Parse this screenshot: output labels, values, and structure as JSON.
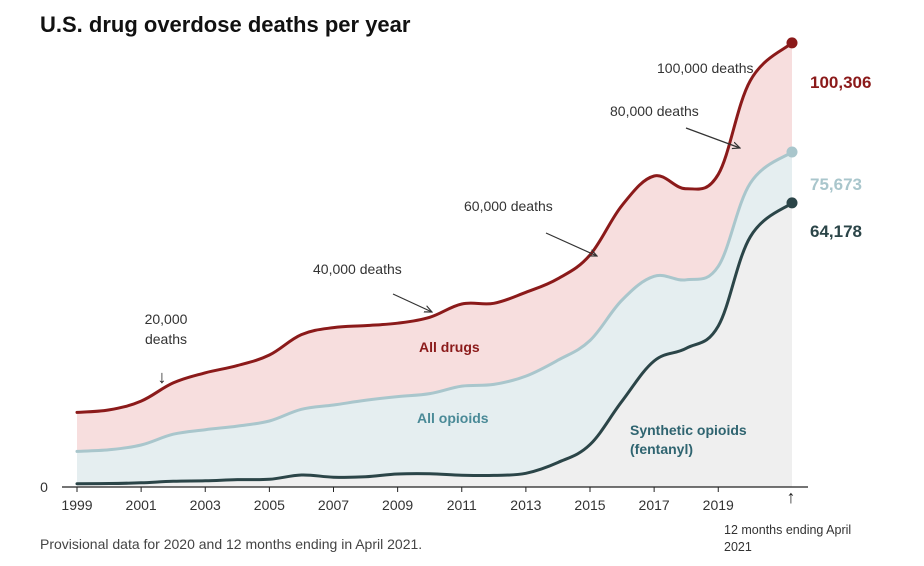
{
  "title": "U.S. drug overdose deaths per year",
  "footnote": "Provisional data for 2020 and 12 months ending in April 2021.",
  "colors": {
    "all_drugs": "#8b1a1a",
    "all_drugs_fill": "#f7dede",
    "all_opioids": "#a9c6cc",
    "all_opioids_fill": "#e5eef0",
    "synthetic": "#2b4548",
    "synthetic_fill": "#efefef",
    "synthetic_label": "#2f6470",
    "opioids_label": "#4a8a97"
  },
  "chart_data": {
    "type": "area",
    "title": "U.S. drug overdose deaths per year",
    "x": [
      1999,
      2000,
      2001,
      2002,
      2003,
      2004,
      2005,
      2006,
      2007,
      2008,
      2009,
      2010,
      2011,
      2012,
      2013,
      2014,
      2015,
      2016,
      2017,
      2018,
      2019,
      2020,
      2021.3
    ],
    "series": [
      {
        "name": "All drugs",
        "values": [
          16849,
          17415,
          19394,
          23518,
          25785,
          27424,
          29813,
          34425,
          36010,
          36450,
          37004,
          38329,
          41340,
          41502,
          43982,
          47055,
          52404,
          63632,
          70237,
          67367,
          70630,
          91799,
          100306
        ]
      },
      {
        "name": "All opioids",
        "values": [
          8050,
          8407,
          9496,
          11920,
          12940,
          13756,
          14918,
          17545,
          18516,
          19582,
          20422,
          21089,
          22784,
          23166,
          25052,
          28647,
          33091,
          42249,
          47600,
          46802,
          49860,
          68630,
          75673
        ]
      },
      {
        "name": "Synthetic opioids (fentanyl)",
        "values": [
          730,
          782,
          957,
          1295,
          1400,
          1664,
          1742,
          2707,
          2213,
          2306,
          2946,
          3007,
          2666,
          2628,
          3105,
          5544,
          9580,
          19413,
          28466,
          31335,
          36359,
          56516,
          64178
        ]
      }
    ],
    "end_values": [
      "100,306",
      "75,673",
      "64,178"
    ],
    "x_ticks": [
      "1999",
      "2001",
      "2003",
      "2005",
      "2007",
      "2009",
      "2011",
      "2013",
      "2015",
      "2017",
      "2019"
    ],
    "y_tick": "0",
    "ylim": [
      0,
      110000
    ],
    "xlim": [
      1999,
      2021.3
    ],
    "annotations": [
      {
        "lines": [
          "20,000",
          "deaths"
        ],
        "arrow": "↓"
      },
      {
        "lines": [
          "40,000 deaths"
        ]
      },
      {
        "lines": [
          "60,000 deaths"
        ]
      },
      {
        "lines": [
          "80,000 deaths"
        ]
      },
      {
        "lines": [
          "100,000 deaths"
        ]
      }
    ],
    "end_note": [
      "12 months ending April",
      "2021"
    ],
    "end_arrow": "↑"
  }
}
